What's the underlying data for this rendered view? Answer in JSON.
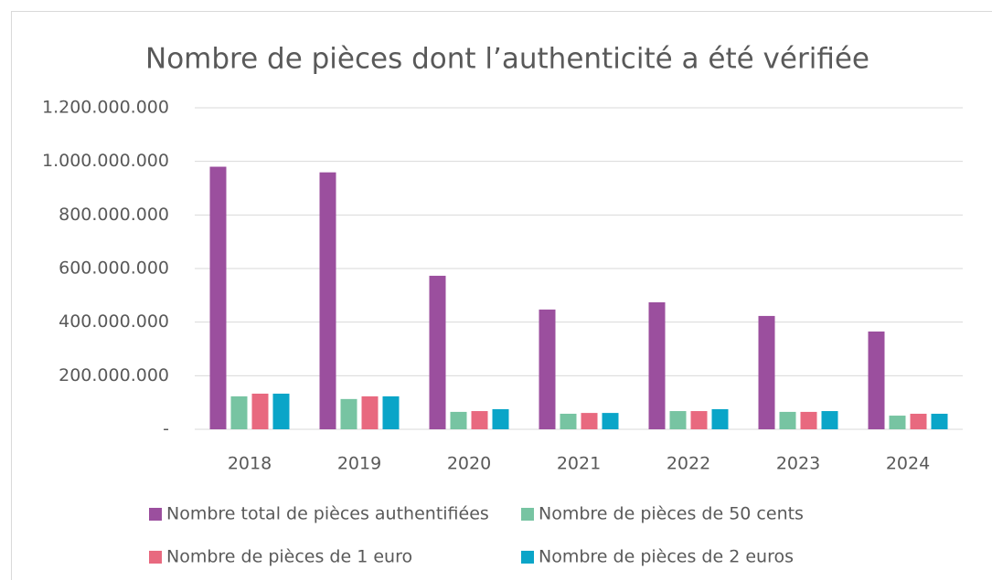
{
  "chart_data": {
    "type": "bar",
    "title": "Nombre de pièces dont l’authenticité a été vérifiée",
    "categories": [
      "2018",
      "2019",
      "2020",
      "2021",
      "2022",
      "2023",
      "2024"
    ],
    "series": [
      {
        "name": "Nombre total de pièces authentifiées",
        "color": "#9b4f9e",
        "values": [
          980000000,
          959000000,
          573000000,
          447000000,
          474000000,
          423000000,
          365000000
        ]
      },
      {
        "name": "Nombre de pièces de 50 cents",
        "color": "#77c4a2",
        "values": [
          123000000,
          113000000,
          65000000,
          58000000,
          68000000,
          65000000,
          51000000
        ]
      },
      {
        "name": "Nombre de pièces de 1 euro",
        "color": "#e8697f",
        "values": [
          133000000,
          123000000,
          68000000,
          61000000,
          68000000,
          65000000,
          58000000
        ]
      },
      {
        "name": "Nombre de pièces de 2 euros",
        "color": "#0aa5c8",
        "values": [
          133000000,
          123000000,
          75000000,
          61000000,
          75000000,
          68000000,
          58000000
        ]
      }
    ],
    "ylim": [
      0,
      1200000000
    ],
    "yticks": [
      {
        "value": 0,
        "label": "-"
      },
      {
        "value": 200000000,
        "label": "200.000.000"
      },
      {
        "value": 400000000,
        "label": "400.000.000"
      },
      {
        "value": 600000000,
        "label": "600.000.000"
      },
      {
        "value": 800000000,
        "label": "800.000.000"
      },
      {
        "value": 1000000000,
        "label": "1.000.000.000"
      },
      {
        "value": 1200000000,
        "label": "1.200.000.000"
      }
    ],
    "grid": true,
    "legend": "bottom"
  }
}
